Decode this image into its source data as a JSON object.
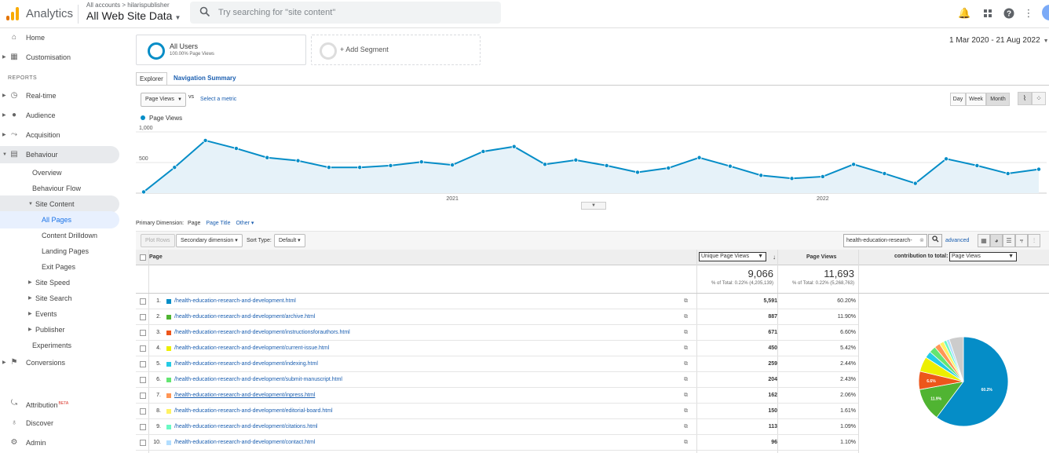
{
  "app": {
    "brand": "Analytics",
    "breadcrumb": "All accounts > hilarispublisher",
    "view": "All Web Site Data",
    "search_placeholder": "Try searching for \"site content\""
  },
  "sidebar": {
    "top": [
      {
        "label": "Home",
        "icon": "home-icon"
      },
      {
        "label": "Customisation",
        "icon": "dashboard-icon"
      }
    ],
    "reports_header": "REPORTS",
    "reports": [
      {
        "label": "Real-time",
        "icon": "clock-icon"
      },
      {
        "label": "Audience",
        "icon": "person-icon"
      },
      {
        "label": "Acquisition",
        "icon": "acquisition-icon"
      },
      {
        "label": "Behaviour",
        "icon": "behaviour-icon"
      }
    ],
    "behaviour_items": [
      "Overview",
      "Behaviour Flow",
      "Site Content",
      "All Pages",
      "Content Drilldown",
      "Landing Pages",
      "Exit Pages",
      "Site Speed",
      "Site Search",
      "Events",
      "Publisher",
      "Experiments"
    ],
    "conversions": "Conversions",
    "bottom": [
      {
        "label": "Attribution",
        "badge": "BETA"
      },
      {
        "label": "Discover"
      },
      {
        "label": "Admin"
      }
    ]
  },
  "segments": {
    "all_users": "All Users",
    "all_users_sub": "100.00% Page Views",
    "add": "+ Add Segment"
  },
  "date_range": "1 Mar 2020 - 21 Aug 2022",
  "tabs": {
    "explorer": "Explorer",
    "nav_summary": "Navigation Summary"
  },
  "chart_controls": {
    "metric": "Page Views",
    "vs": "vs",
    "select_metric": "Select a metric",
    "granularity": [
      "Day",
      "Week",
      "Month"
    ],
    "active_granularity": "Month"
  },
  "chart_data": {
    "type": "line",
    "series": [
      {
        "name": "Page Views",
        "color": "#058dc7",
        "values": [
          20,
          420,
          860,
          730,
          580,
          530,
          420,
          420,
          450,
          510,
          460,
          680,
          760,
          470,
          540,
          450,
          340,
          410,
          580,
          440,
          290,
          240,
          270,
          470,
          320,
          160,
          560,
          450,
          320,
          390
        ]
      }
    ],
    "x_tick_labels": [
      "2021",
      "2022"
    ],
    "y_tick_labels": [
      "1,000",
      "500"
    ],
    "ylim": [
      0,
      1000
    ],
    "grid": true
  },
  "primary_dimension": {
    "label": "Primary Dimension:",
    "current": "Page",
    "options": [
      "Page Title",
      "Other"
    ]
  },
  "toolbar": {
    "plot_rows": "Plot Rows",
    "secondary": "Secondary dimension",
    "sort_label": "Sort Type:",
    "sort_value": "Default",
    "filter_value": "health-education-research-",
    "advanced": "advanced"
  },
  "table": {
    "col_page": "Page",
    "col_unique": "Unique Page Views",
    "col_pv": "Page Views",
    "contribution_label": "contribution to total:",
    "contribution_metric": "Page Views",
    "totals": {
      "unique": "9,066",
      "unique_pct": "% of Total: 0.22% (4,205,139)",
      "pv": "11,693",
      "pv_pct": "% of Total: 0.22% (5,268,763)"
    },
    "rows": [
      {
        "n": "1.",
        "page": "/health-education-research-and-development.html",
        "unique": "5,591",
        "pct": "60.20%",
        "color": "#058dc7"
      },
      {
        "n": "2.",
        "page": "/health-education-research-and-development/archive.html",
        "unique": "887",
        "pct": "11.90%",
        "color": "#50b432"
      },
      {
        "n": "3.",
        "page": "/health-education-research-and-development/instructionsforauthors.html",
        "unique": "671",
        "pct": "6.60%",
        "color": "#ed561b"
      },
      {
        "n": "4.",
        "page": "/health-education-research-and-development/current-issue.html",
        "unique": "450",
        "pct": "5.42%",
        "color": "#edef00"
      },
      {
        "n": "5.",
        "page": "/health-education-research-and-development/indexing.html",
        "unique": "259",
        "pct": "2.44%",
        "color": "#24cbe5"
      },
      {
        "n": "6.",
        "page": "/health-education-research-and-development/submit-manuscript.html",
        "unique": "204",
        "pct": "2.43%",
        "color": "#64e572"
      },
      {
        "n": "7.",
        "page": "/health-education-research-and-development/inpress.html",
        "unique": "162",
        "pct": "2.06%",
        "color": "#ff9655"
      },
      {
        "n": "8.",
        "page": "/health-education-research-and-development/editorial-board.html",
        "unique": "150",
        "pct": "1.61%",
        "color": "#fff263"
      },
      {
        "n": "9.",
        "page": "/health-education-research-and-development/citations.html",
        "unique": "113",
        "pct": "1.09%",
        "color": "#6af9c4"
      },
      {
        "n": "10.",
        "page": "/health-education-research-and-development/contact.html",
        "unique": "96",
        "pct": "1.10%",
        "color": "#b2deff"
      }
    ],
    "pie_labels": [
      "60.2%",
      "11.9%",
      "6.6%"
    ],
    "pie_other_color": "#cccccc"
  }
}
